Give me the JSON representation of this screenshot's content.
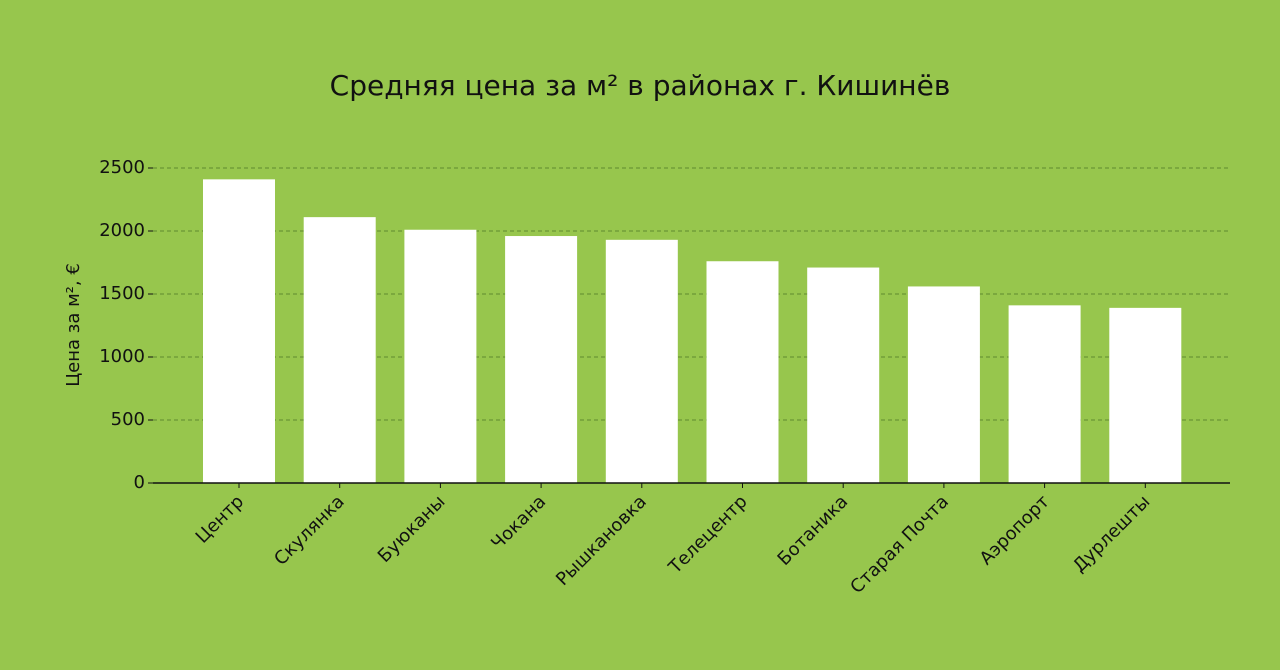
{
  "chart_data": {
    "type": "bar",
    "title": "Средняя цена за м² в районах г. Кишинёв",
    "y_label": "Цена за м², €",
    "categories": [
      "Центр",
      "Скулянка",
      "Буюканы",
      "Чокана",
      "Рышкановка",
      "Телецентр",
      "Ботаника",
      "Старая Почта",
      "Аэропорт",
      "Дурлешты"
    ],
    "values": [
      2410,
      2110,
      2010,
      1960,
      1930,
      1760,
      1710,
      1560,
      1410,
      1390
    ],
    "color": "#ffffff",
    "ylim": [
      0,
      2500
    ],
    "yticks": [
      0,
      500,
      1000,
      1500,
      2000,
      2500
    ],
    "grid": true
  }
}
